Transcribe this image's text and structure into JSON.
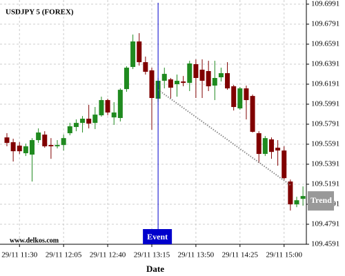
{
  "chart_data": {
    "type": "candlestick",
    "title": "USDJPY 5 (FOREX)",
    "x_label": "Date",
    "watermark": "www.delkos.com",
    "categories": [
      null,
      null,
      "29/11 11:30",
      null,
      null,
      null,
      null,
      null,
      null,
      "29/11 12:05",
      null,
      null,
      null,
      null,
      null,
      null,
      "29/11 12:40",
      null,
      null,
      null,
      null,
      null,
      null,
      "29/11 13:15",
      null,
      null,
      null,
      null,
      null,
      null,
      "29/11 13:50",
      null,
      null,
      null,
      null,
      null,
      null,
      "29/11 14:25",
      null,
      null,
      null,
      null,
      null,
      null,
      "29/11 15:00",
      null,
      null,
      null
    ],
    "open": [
      109.5659,
      109.5611,
      109.5577,
      109.5501,
      109.5487,
      109.5632,
      109.5687,
      109.5583,
      109.557,
      109.5583,
      109.5701,
      109.5763,
      109.5804,
      109.5846,
      109.5804,
      109.588,
      109.6032,
      109.5859,
      109.5853,
      109.6142,
      109.6363,
      109.6618,
      109.6411,
      109.6329,
      109.6046,
      109.6225,
      109.6239,
      109.6191,
      109.6218,
      109.6204,
      109.6391,
      109.6336,
      109.6322,
      109.6177,
      109.626,
      109.6301,
      109.617,
      109.5949,
      109.6149,
      109.6073,
      109.5701,
      109.5494,
      109.5639,
      109.5556,
      109.5528,
      109.5218,
      109.499,
      109.5045
    ],
    "high": [
      109.5701,
      109.5646,
      109.5611,
      109.5597,
      109.5652,
      109.5749,
      109.5721,
      109.5652,
      109.5632,
      109.5687,
      109.5804,
      109.5839,
      109.5873,
      109.5984,
      109.5963,
      109.6066,
      109.6046,
      109.6011,
      109.6149,
      109.637,
      109.6687,
      109.6701,
      109.6467,
      109.6356,
      109.6253,
      109.6356,
      109.6253,
      109.6287,
      109.6273,
      109.6425,
      109.6439,
      109.6439,
      109.6425,
      109.6425,
      109.6356,
      109.6411,
      109.6184,
      109.6163,
      109.6177,
      109.6087,
      109.5721,
      109.5673,
      109.5659,
      109.5632,
      109.557,
      109.5238,
      109.5066,
      109.5169
    ],
    "low": [
      109.557,
      109.5418,
      109.5494,
      109.5473,
      109.5218,
      109.5604,
      109.5556,
      109.5445,
      109.5549,
      109.5528,
      109.568,
      109.5721,
      109.5708,
      109.5749,
      109.5742,
      109.5866,
      109.588,
      109.5784,
      109.5818,
      109.6115,
      109.6342,
      109.6377,
      109.6287,
      109.5735,
      109.6011,
      109.6149,
      109.6046,
      109.6066,
      109.617,
      109.6122,
      109.6053,
      109.6053,
      109.6122,
      109.6032,
      109.6218,
      109.6135,
      109.5928,
      109.5935,
      109.5839,
      109.5708,
      109.5404,
      109.5473,
      109.5445,
      109.5376,
      109.5238,
      109.4928,
      109.4962,
      109.4976
    ],
    "close": [
      109.5604,
      109.5521,
      109.5521,
      109.557,
      109.5632,
      109.5708,
      109.557,
      109.557,
      109.5583,
      109.5652,
      109.577,
      109.5804,
      109.5846,
      109.5797,
      109.5887,
      109.6032,
      109.5908,
      109.5908,
      109.6135,
      109.6356,
      109.6618,
      109.6411,
      109.6315,
      109.6053,
      109.6225,
      109.6294,
      109.6156,
      109.6225,
      109.6204,
      109.6398,
      109.6253,
      109.6225,
      109.617,
      109.6253,
      109.6301,
      109.6149,
      109.5963,
      109.6149,
      109.6032,
      109.5715,
      109.5494,
      109.5652,
      109.5514,
      109.5528,
      109.5252,
      109.499,
      109.5031,
      109.5073
    ],
    "up_color": "#1f8a1f",
    "down_color": "#800000",
    "ylim": [
      109.4591,
      109.6991
    ],
    "yticks": [
      109.4591,
      109.4791,
      109.4991,
      109.5191,
      109.5391,
      109.5591,
      109.5791,
      109.5991,
      109.6191,
      109.6391,
      109.6591,
      109.6791,
      109.6991
    ],
    "grid": true,
    "event": {
      "label": "Event",
      "index": 24,
      "color": "#0000cc"
    },
    "trend": {
      "label": "Trend",
      "from": [
        24,
        109.6135
      ],
      "to": [
        45,
        109.5183
      ],
      "color": "#888888"
    }
  }
}
